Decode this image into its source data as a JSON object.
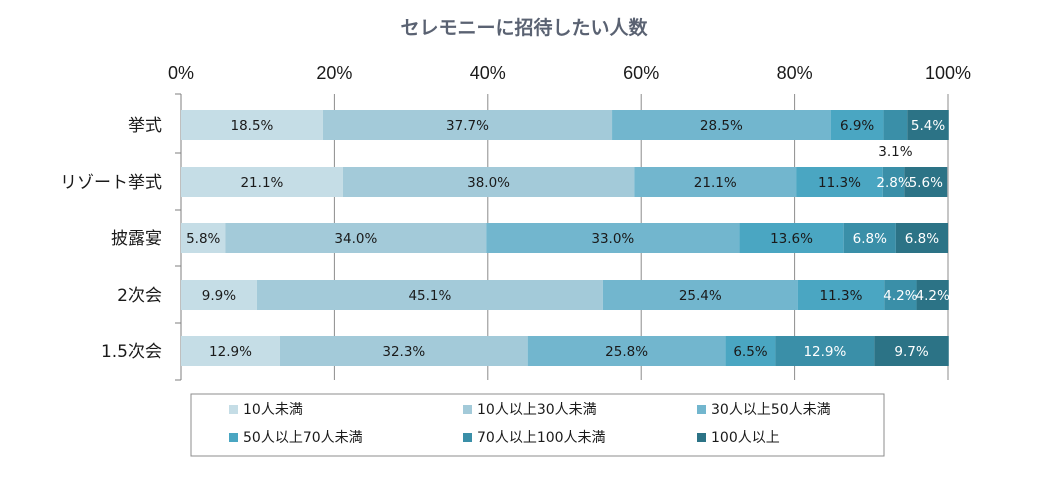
{
  "chart_data": {
    "type": "bar",
    "orientation": "horizontal",
    "stacked": true,
    "title": "セレモニーに招待したい人数",
    "xlim": [
      0,
      100
    ],
    "xticks": [
      "0%",
      "20%",
      "40%",
      "60%",
      "80%",
      "100%"
    ],
    "categories": [
      "挙式",
      "リゾート挙式",
      "披露宴",
      "2次会",
      "1.5次会"
    ],
    "series": [
      {
        "name": "10人未満",
        "color": "#c5dde6",
        "values": [
          18.5,
          21.1,
          5.8,
          9.9,
          12.9
        ],
        "labels": [
          "18.5%",
          "21.1%",
          "5.8%",
          "9.9%",
          "12.9%"
        ]
      },
      {
        "name": "10人以上30人未満",
        "color": "#a3cad9",
        "values": [
          37.7,
          38.0,
          34.0,
          45.1,
          32.3
        ],
        "labels": [
          "37.7%",
          "38.0%",
          "34.0%",
          "45.1%",
          "32.3%"
        ]
      },
      {
        "name": "30人以上50人未満",
        "color": "#72b6ce",
        "values": [
          28.5,
          21.1,
          33.0,
          25.4,
          25.8
        ],
        "labels": [
          "28.5%",
          "21.1%",
          "33.0%",
          "25.4%",
          "25.8%"
        ]
      },
      {
        "name": "50人以上70人未満",
        "color": "#4aa6c2",
        "values": [
          6.9,
          11.3,
          13.6,
          11.3,
          6.5
        ],
        "labels": [
          "6.9%",
          "11.3%",
          "13.6%",
          "11.3%",
          "6.5%"
        ]
      },
      {
        "name": "70人以上100人未満",
        "color": "#3a8fa8",
        "values": [
          3.1,
          2.8,
          6.8,
          4.2,
          12.9
        ],
        "labels": [
          "3.1%",
          "2.8%",
          "6.8%",
          "4.2%",
          "12.9%"
        ]
      },
      {
        "name": "100人以上",
        "color": "#2c7386",
        "values": [
          5.4,
          5.6,
          6.8,
          4.2,
          9.7
        ],
        "labels": [
          "5.4%",
          "5.6%",
          "6.8%",
          "4.2%",
          "9.7%"
        ]
      }
    ]
  }
}
